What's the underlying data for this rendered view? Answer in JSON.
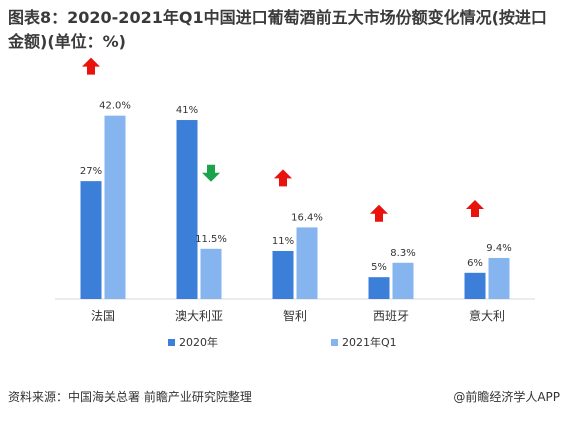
{
  "chart_data": {
    "type": "bar",
    "title": "图表8：2020-2021年Q1中国进口葡萄酒前五大市场份额变化情况(按进口金额)(单位：%)",
    "categories": [
      "法国",
      "澳大利亚",
      "智利",
      "西班牙",
      "意大利"
    ],
    "series": [
      {
        "name": "2020年",
        "values": [
          27,
          41,
          11,
          5,
          6
        ],
        "labels": [
          "27%",
          "41%",
          "11%",
          "5%",
          "6%"
        ],
        "color": "#3b7fd9"
      },
      {
        "name": "2021年Q1",
        "values": [
          42.0,
          11.5,
          16.4,
          8.3,
          9.4
        ],
        "labels": [
          "42.0%",
          "11.5%",
          "16.4%",
          "8.3%",
          "9.4%"
        ],
        "color": "#86b4ef"
      }
    ],
    "trend": [
      "up",
      "down",
      "up",
      "up",
      "up"
    ],
    "trend_colors": {
      "up": "#e8130d",
      "down": "#1aa34a"
    },
    "ylim": [
      0,
      50
    ],
    "grid": false,
    "legend_position": "bottom"
  },
  "footer": {
    "source": "资料来源：中国海关总署 前瞻产业研究院整理",
    "brand": "@前瞻经济学人APP"
  }
}
